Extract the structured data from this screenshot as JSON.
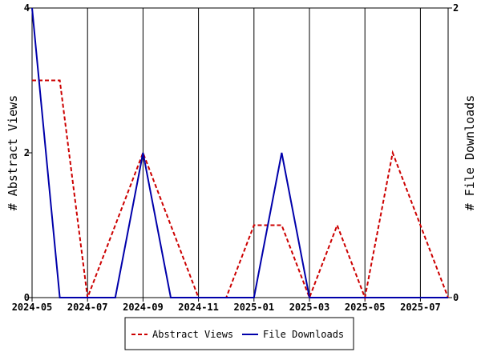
{
  "chart_data": {
    "type": "line",
    "x": [
      "2024-05",
      "2024-06",
      "2024-07",
      "2024-08",
      "2024-09",
      "2024-10",
      "2024-11",
      "2024-12",
      "2025-01",
      "2025-02",
      "2025-03",
      "2025-04",
      "2025-05",
      "2025-06",
      "2025-07",
      "2025-08"
    ],
    "x_tick_labels": [
      "2024-05",
      "2024-07",
      "2024-09",
      "2024-11",
      "2025-01",
      "2025-03",
      "2025-05",
      "2025-07"
    ],
    "series": [
      {
        "name": "Abstract Views",
        "axis": "left",
        "color": "#cc0000",
        "line_style": "dashed",
        "values": [
          3,
          3,
          0,
          1,
          2,
          1,
          0,
          0,
          1,
          1,
          0,
          1,
          0,
          2,
          1,
          0
        ]
      },
      {
        "name": "File Downloads",
        "axis": "right",
        "color": "#0000aa",
        "line_style": "solid",
        "values": [
          2,
          0,
          0,
          0,
          1,
          0,
          0,
          0,
          0,
          1,
          0,
          0,
          0,
          0,
          0,
          0
        ]
      }
    ],
    "ylabel_left": "# Abstract Views",
    "ylabel_right": "# File Downloads",
    "ylim_left": [
      0,
      4
    ],
    "ylim_right": [
      0,
      2
    ],
    "y_ticks_left": [
      0,
      2,
      4
    ],
    "y_ticks_right": [
      0,
      2
    ],
    "grid": "vertical lines at x tick labels",
    "legend_position": "bottom-center"
  },
  "legend": {
    "items": [
      {
        "label": "Abstract Views",
        "color": "#cc0000",
        "style": "dashed"
      },
      {
        "label": "File Downloads",
        "color": "#0000aa",
        "style": "solid"
      }
    ]
  }
}
